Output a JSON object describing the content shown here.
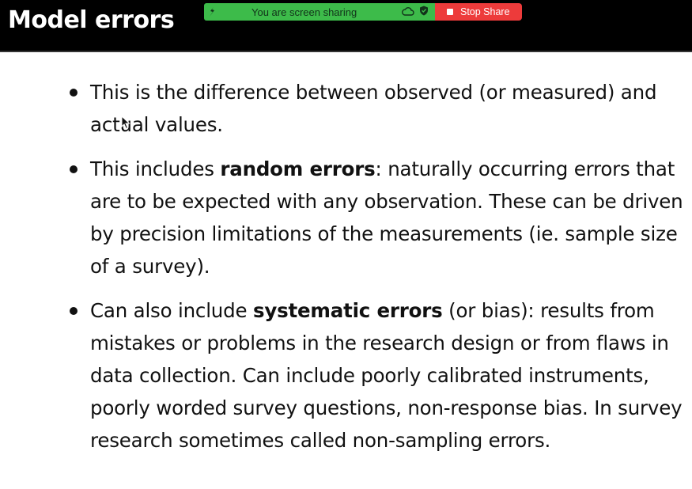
{
  "slide": {
    "title": "Model errors"
  },
  "share_banner": {
    "text": "You are screen sharing",
    "stop_label": "Stop Share",
    "banner_color": "#3dbb4a",
    "stop_color": "#ed3b3b"
  },
  "bullets": [
    {
      "before": "This is the difference between observed (or measured) and actual values.",
      "bold": "",
      "after": ""
    },
    {
      "before": "This includes ",
      "bold": "random errors",
      "after": ":  naturally occurring errors that are to be expected with any observation.  These can be driven by precision limitations of the measurements (ie. sample size of a survey)."
    },
    {
      "before": "Can also include ",
      "bold": "systematic errors",
      "after": " (or bias):  results from mistakes or problems in the research design or from flaws in data collection. Can include poorly calibrated instruments, poorly worded survey questions, non-response bias.  In survey research sometimes called non-sampling errors."
    }
  ]
}
